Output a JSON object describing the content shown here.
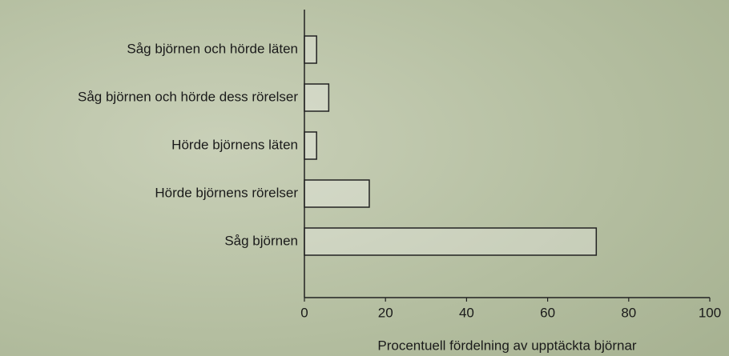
{
  "chart_data": {
    "type": "hbar",
    "categories": [
      "Såg björnen och hörde läten",
      "Såg björnen och hörde dess rörelser",
      "Hörde björnens läten",
      "Hörde björnens rörelser",
      "Såg björnen"
    ],
    "values": [
      3,
      6,
      3,
      16,
      72
    ],
    "color": "#f2f2ee",
    "xlabel": "Procentuell fördelning av upptäckta björnar",
    "xlim": [
      0,
      100
    ],
    "xticks": [
      0,
      20,
      40,
      60,
      80,
      100
    ]
  }
}
